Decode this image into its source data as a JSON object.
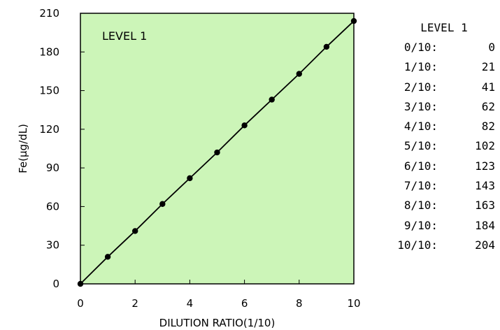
{
  "chart_data": {
    "type": "line",
    "title": "",
    "xlabel": "DILUTION RATIO(1/10)",
    "ylabel": "Fe(µg/dL)",
    "xlim": [
      0,
      10
    ],
    "ylim": [
      0,
      210
    ],
    "xticks": [
      0,
      2,
      4,
      6,
      8,
      10
    ],
    "yticks": [
      0,
      30,
      60,
      90,
      120,
      150,
      180,
      210
    ],
    "background_color": "#ccf5b8",
    "line_color": "#000000",
    "grid": false,
    "inset_label": "LEVEL 1",
    "series": [
      {
        "x": [
          0,
          1,
          2,
          3,
          4,
          5,
          6,
          7,
          8,
          9,
          10
        ],
        "values": [
          0,
          21,
          41,
          62,
          82,
          102,
          123,
          143,
          163,
          184,
          204
        ]
      }
    ]
  },
  "table": {
    "title": "LEVEL 1",
    "rows": [
      {
        "ratio": "0/10:",
        "value": "0"
      },
      {
        "ratio": "1/10:",
        "value": "21"
      },
      {
        "ratio": "2/10:",
        "value": "41"
      },
      {
        "ratio": "3/10:",
        "value": "62"
      },
      {
        "ratio": "4/10:",
        "value": "82"
      },
      {
        "ratio": "5/10:",
        "value": "102"
      },
      {
        "ratio": "6/10:",
        "value": "123"
      },
      {
        "ratio": "7/10:",
        "value": "143"
      },
      {
        "ratio": "8/10:",
        "value": "163"
      },
      {
        "ratio": "9/10:",
        "value": "184"
      },
      {
        "ratio": "10/10:",
        "value": "204"
      }
    ]
  }
}
